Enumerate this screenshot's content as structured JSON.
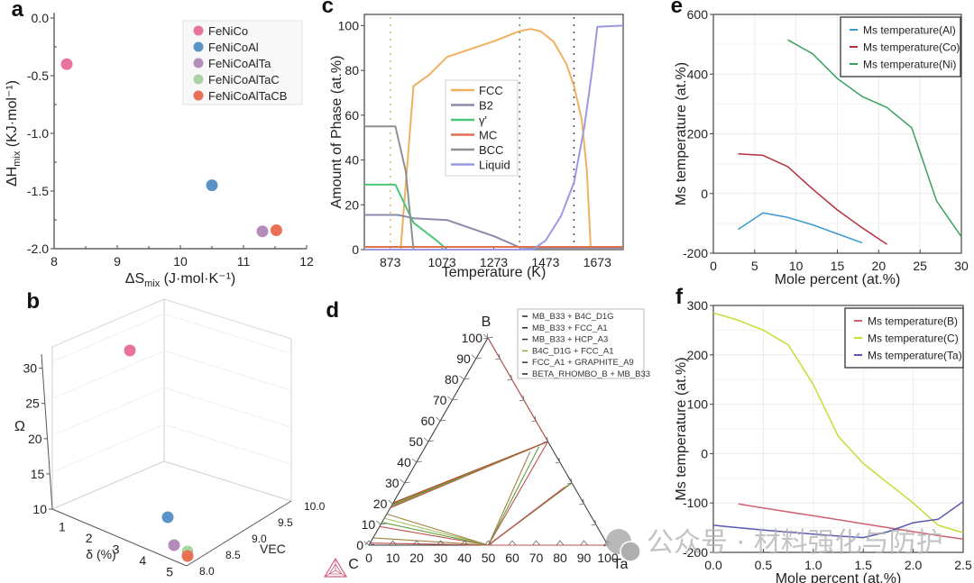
{
  "watermark": {
    "text": "公众号 · 材料强化与防护",
    "icon": "wechat-icon"
  },
  "chart_data": [
    {
      "id": "a",
      "panel_label": "a",
      "type": "scatter",
      "xlabel_main": "ΔS",
      "xlabel_sub": "mix",
      "xlabel_unit": " (J·mol·K⁻¹)",
      "ylabel_main": "ΔH",
      "ylabel_sub": "mix",
      "ylabel_unit": " (KJ·mol⁻¹)",
      "xlim": [
        8,
        12
      ],
      "ylim": [
        -2.0,
        0.0
      ],
      "xticks": [
        8,
        9,
        10,
        11,
        12
      ],
      "xtick_labels": [
        "8",
        "9",
        "10",
        "11",
        "12"
      ],
      "yticks": [
        0.0,
        -0.5,
        -1.0,
        -1.5,
        -2.0
      ],
      "ytick_labels": [
        "0.0",
        "-0.5",
        "-1.0",
        "-1.5",
        "-2.0"
      ],
      "legend_position": "top-right",
      "series": [
        {
          "name": "FeNiCo",
          "color": "#e8739e",
          "x": 8.2,
          "y": -0.4
        },
        {
          "name": "FeNiCoAl",
          "color": "#5b93c9",
          "x": 10.5,
          "y": -1.45
        },
        {
          "name": "FeNiCoAlTa",
          "color": "#b48cba",
          "x": 11.3,
          "y": -1.85
        },
        {
          "name": "FeNiCoAlTaC",
          "color": "#a8d5a0",
          "x": 11.52,
          "y": -1.84
        },
        {
          "name": "FeNiCoAlTaCB",
          "color": "#ea7055",
          "x": 11.52,
          "y": -1.84
        }
      ]
    },
    {
      "id": "b",
      "panel_label": "b",
      "type": "scatter",
      "projection": "3d",
      "xlabel": "δ (%)",
      "ylabel": "VEC",
      "zlabel": "Ω",
      "xlim": [
        0.5,
        5.5
      ],
      "ylim": [
        8.0,
        10.0
      ],
      "zlim": [
        10,
        32
      ],
      "xticks": [
        1,
        2,
        3,
        4,
        5
      ],
      "xtick_labels": [
        "1",
        "2",
        "3",
        "4",
        "5"
      ],
      "yticks": [
        8.0,
        8.5,
        9.0,
        9.5,
        10.0
      ],
      "ytick_labels": [
        "8.0",
        "8.5",
        "9.0",
        "9.5",
        "10.0"
      ],
      "zticks": [
        10,
        15,
        20,
        25,
        30
      ],
      "ztick_labels": [
        "10",
        "15",
        "20",
        "25",
        "30"
      ],
      "series": [
        {
          "name": "FeNiCo",
          "color": "#e8739e",
          "x": 1.1,
          "y": 8.0,
          "z": 30
        },
        {
          "name": "FeNiCoAl",
          "color": "#5b93c9",
          "x": 4.6,
          "y": 8.6,
          "z": 10.2
        },
        {
          "name": "FeNiCoAlTa",
          "color": "#b48cba",
          "x": 5.2,
          "y": 8.2,
          "z": 10
        },
        {
          "name": "FeNiCoAlTaC",
          "color": "#a8d5a0",
          "x": 5.4,
          "y": 8.1,
          "z": 10.4
        },
        {
          "name": "FeNiCoAlTaCB",
          "color": "#ea7055",
          "x": 5.45,
          "y": 8.05,
          "z": 10
        }
      ]
    },
    {
      "id": "c",
      "panel_label": "c",
      "type": "line",
      "xlabel": "Temperature (K)",
      "ylabel": "Amount of  Phase (at.%)",
      "xlim": [
        773,
        1773
      ],
      "ylim": [
        0,
        105
      ],
      "xticks": [
        873,
        1073,
        1273,
        1473,
        1673
      ],
      "xtick_labels": [
        "873",
        "1073",
        "1273",
        "1473",
        "1673"
      ],
      "yticks": [
        0,
        20,
        40,
        60,
        80,
        100
      ],
      "ytick_labels": [
        "0",
        "20",
        "40",
        "60",
        "80",
        "100"
      ],
      "legend_position": "center",
      "vlines": [
        {
          "x": 873,
          "color": "#e0b070"
        },
        {
          "x": 1373,
          "color": "#3c8a3c"
        },
        {
          "x": 1583,
          "color": "#3a3a5a"
        }
      ],
      "series": [
        {
          "name": "FCC",
          "color": "#f0b060",
          "points": [
            [
              773,
              0
            ],
            [
              913,
              0
            ],
            [
              963,
              73
            ],
            [
              1023,
              78
            ],
            [
              1093,
              86
            ],
            [
              1273,
              93
            ],
            [
              1373,
              97.5
            ],
            [
              1413,
              98.5
            ],
            [
              1453,
              97.5
            ],
            [
              1503,
              93
            ],
            [
              1553,
              83
            ],
            [
              1583,
              73
            ],
            [
              1613,
              58
            ],
            [
              1633,
              35
            ],
            [
              1648,
              0
            ],
            [
              1773,
              0
            ]
          ]
        },
        {
          "name": "B2",
          "color": "#8a8aaa",
          "points": [
            [
              773,
              15.5
            ],
            [
              903,
              15.5
            ],
            [
              963,
              14
            ],
            [
              1093,
              13.2
            ],
            [
              1273,
              6
            ],
            [
              1373,
              1
            ],
            [
              1453,
              0.5
            ],
            [
              1773,
              0.5
            ]
          ]
        },
        {
          "name": "γ'",
          "color": "#48c878",
          "points": [
            [
              773,
              29
            ],
            [
              893,
              29
            ],
            [
              963,
              12
            ],
            [
              1053,
              4
            ],
            [
              1093,
              0
            ],
            [
              1773,
              0
            ]
          ]
        },
        {
          "name": "MC",
          "color": "#e07050",
          "points": [
            [
              773,
              1.2
            ],
            [
              1773,
              1.2
            ]
          ]
        },
        {
          "name": "BCC",
          "color": "#909090",
          "points": [
            [
              773,
              55
            ],
            [
              893,
              55
            ],
            [
              933,
              35
            ],
            [
              963,
              0
            ],
            [
              1773,
              0
            ]
          ]
        },
        {
          "name": "Liquid",
          "color": "#9a9ae0",
          "points": [
            [
              773,
              0
            ],
            [
              1423,
              0
            ],
            [
              1473,
              4
            ],
            [
              1533,
              15
            ],
            [
              1583,
              30
            ],
            [
              1623,
              55
            ],
            [
              1653,
              80
            ],
            [
              1673,
              99.5
            ],
            [
              1773,
              100
            ]
          ]
        }
      ]
    },
    {
      "id": "d",
      "panel_label": "d",
      "type": "ternary",
      "corners": {
        "top": "B",
        "left": "C",
        "right": "Ta"
      },
      "left_ticks": [
        "0",
        "10",
        "20",
        "30",
        "40",
        "50",
        "60",
        "70",
        "80",
        "90",
        "100"
      ],
      "bottom_ticks": [
        "0",
        "10",
        "20",
        "30",
        "40",
        "50",
        "60",
        "70",
        "80",
        "90",
        "100"
      ],
      "legend_position": "top-right",
      "legend": [
        {
          "name": "MB_B33 + B4C_D1G",
          "color": "#222222"
        },
        {
          "name": "MB_B33 + FCC_A1",
          "color": "#222222"
        },
        {
          "name": "MB_B33 + HCP_A3",
          "color": "#333333"
        },
        {
          "name": "B4C_D1G + FCC_A1",
          "color": "#9a9a40"
        },
        {
          "name": "FCC_A1 + GRAPHITE_A9",
          "color": "#333333"
        },
        {
          "name": "BETA_RHOMBO_B + MB_B33",
          "color": "#222222"
        }
      ],
      "tie_line_fans": [
        {
          "from": [
            0,
            18
          ],
          "to": [
            50,
            50
          ],
          "colors": [
            "#c05050",
            "#909040",
            "#60a040",
            "#a08040",
            "#b05030"
          ]
        },
        {
          "from": [
            0,
            9
          ],
          "to": [
            50,
            0
          ],
          "colors": [
            "#c05050",
            "#60a040",
            "#a0c060",
            "#a08040"
          ],
          "from2": [
            0,
            15
          ]
        },
        {
          "from": [
            50,
            0
          ],
          "to": [
            50,
            50
          ],
          "colors": [
            "#c05050",
            "#60a040",
            "#a08040"
          ],
          "to2": [
            45,
            45
          ]
        },
        {
          "from": [
            50,
            0
          ],
          "to": [
            70,
            30
          ],
          "colors": [
            "#a08040",
            "#60a040",
            "#909040",
            "#c05050"
          ],
          "to2": [
            68,
            28
          ]
        },
        {
          "from": [
            0,
            1
          ],
          "to": [
            50,
            0
          ],
          "colors": [
            "#c05050",
            "#a08040"
          ]
        },
        {
          "from": [
            50,
            0
          ],
          "to": [
            100,
            0
          ],
          "colors": [
            "#c05050"
          ]
        },
        {
          "from": [
            0,
            100
          ],
          "to": [
            50,
            50
          ],
          "colors": [
            "#c05050"
          ]
        }
      ],
      "logo": "thermo-calc-logo-icon"
    },
    {
      "id": "e",
      "panel_label": "e",
      "type": "line",
      "xlabel": "Mole percent (at.%)",
      "ylabel": "Ms temperature (at.%)",
      "xlim": [
        0,
        30
      ],
      "ylim": [
        -200,
        600
      ],
      "xticks": [
        0,
        5,
        10,
        15,
        20,
        25,
        30
      ],
      "xtick_labels": [
        "0",
        "5",
        "10",
        "15",
        "20",
        "25",
        "30"
      ],
      "yticks": [
        -200,
        0,
        200,
        400,
        600
      ],
      "ytick_labels": [
        "-200",
        "0",
        "200",
        "400",
        "600"
      ],
      "grid": true,
      "legend_position": "top-right",
      "series": [
        {
          "name": "Ms temperature(Al)",
          "color": "#3a9ad0",
          "points": [
            [
              3,
              -120
            ],
            [
              6,
              -65
            ],
            [
              9,
              -80
            ],
            [
              12,
              -105
            ],
            [
              15,
              -135
            ],
            [
              18,
              -165
            ]
          ]
        },
        {
          "name": "Ms temperature(Co)",
          "color": "#b83040",
          "points": [
            [
              3,
              133
            ],
            [
              6,
              128
            ],
            [
              9,
              90
            ],
            [
              12,
              15
            ],
            [
              15,
              -55
            ],
            [
              18,
              -115
            ],
            [
              21,
              -170
            ]
          ]
        },
        {
          "name": "Ms temperature(Ni)",
          "color": "#3aa060",
          "points": [
            [
              9,
              515
            ],
            [
              12,
              468
            ],
            [
              15,
              385
            ],
            [
              18,
              325
            ],
            [
              21,
              288
            ],
            [
              24,
              220
            ],
            [
              27,
              -25
            ],
            [
              30,
              -145
            ]
          ]
        }
      ]
    },
    {
      "id": "f",
      "panel_label": "f",
      "type": "line",
      "xlabel": "Mole percent (at.%)",
      "ylabel": "Ms temperature (at.%)",
      "xlim": [
        0,
        2.5
      ],
      "ylim": [
        -200,
        300
      ],
      "xticks": [
        0.0,
        0.5,
        1.0,
        1.5,
        2.0,
        2.5
      ],
      "xtick_labels": [
        "0.0",
        "0.5",
        "1.0",
        "1.5",
        "2.0",
        "2.5"
      ],
      "yticks": [
        -200,
        -100,
        0,
        100,
        200,
        300
      ],
      "ytick_labels": [
        "-200",
        "-100",
        "0",
        "100",
        "200",
        "300"
      ],
      "grid": true,
      "legend_position": "top-right",
      "series": [
        {
          "name": "Ms temperature(B)",
          "color": "#d06070",
          "points": [
            [
              0.25,
              -102
            ],
            [
              0.5,
              -110
            ],
            [
              0.75,
              -118
            ],
            [
              1.0,
              -126
            ],
            [
              1.25,
              -134
            ],
            [
              1.5,
              -142
            ],
            [
              1.75,
              -150
            ],
            [
              2.0,
              -158
            ],
            [
              2.25,
              -166
            ],
            [
              2.5,
              -173
            ]
          ]
        },
        {
          "name": "Ms temperature(C)",
          "color": "#c8dc30",
          "points": [
            [
              0.0,
              285
            ],
            [
              0.25,
              270
            ],
            [
              0.5,
              250
            ],
            [
              0.75,
              220
            ],
            [
              1.0,
              140
            ],
            [
              1.25,
              35
            ],
            [
              1.5,
              -20
            ],
            [
              1.75,
              -60
            ],
            [
              2.0,
              -100
            ],
            [
              2.25,
              -145
            ],
            [
              2.5,
              -160
            ]
          ]
        },
        {
          "name": "Ms temperature(Ta)",
          "color": "#5858b0",
          "points": [
            [
              0.0,
              -145
            ],
            [
              0.25,
              -150
            ],
            [
              0.5,
              -155
            ],
            [
              0.75,
              -159
            ],
            [
              1.0,
              -163
            ],
            [
              1.25,
              -167
            ],
            [
              1.5,
              -170
            ],
            [
              1.75,
              -158
            ],
            [
              2.0,
              -140
            ],
            [
              2.25,
              -133
            ],
            [
              2.5,
              -97
            ]
          ]
        }
      ]
    }
  ]
}
